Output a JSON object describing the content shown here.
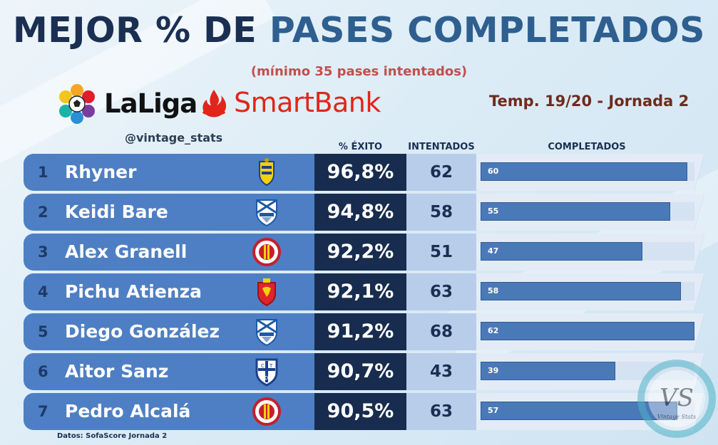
{
  "title": {
    "part1": "MEJOR % DE ",
    "part2": "PASES COMPLETADOS"
  },
  "subtitle": "(mínimo 35 pases intentados)",
  "brand": {
    "laliga": "LaLiga",
    "smartbank": "SmartBank"
  },
  "season": "Temp. 19/20 - Jornada 2",
  "handle": "@vintage_stats",
  "columns": {
    "pct": "% ÉXITO",
    "attempted": "INTENTADOS",
    "completed": "COMPLETADOS"
  },
  "source": "Datos: SofaScore Jornada 2",
  "watermark": {
    "text": "Vintage Stats"
  },
  "colors": {
    "row": "#4e7fc4",
    "pct_bg": "#172c4e",
    "att_bg": "#b7cdea",
    "bar": "#4a79b8",
    "title_dark": "#1b2f52",
    "title_accent": "#2e5f8f",
    "subtitle": "#c0504d",
    "season": "#6e2b1e"
  },
  "chart_data": {
    "type": "table",
    "title": "MEJOR % DE PASES COMPLETADOS",
    "columns": [
      "rank",
      "player",
      "pct_success",
      "attempted",
      "completed"
    ],
    "bar_max": 62,
    "rows": [
      {
        "rank": "1",
        "player": "Rhyner",
        "crest": "cadiz",
        "pct": "96,8%",
        "attempted": 62,
        "completed": 60
      },
      {
        "rank": "2",
        "player": "Keidi Bare",
        "crest": "malaga",
        "pct": "94,8%",
        "attempted": 58,
        "completed": 55
      },
      {
        "rank": "3",
        "player": "Alex Granell",
        "crest": "girona",
        "pct": "92,2%",
        "attempted": 51,
        "completed": 47
      },
      {
        "rank": "4",
        "player": "Pichu Atienza",
        "crest": "zaragoza",
        "pct": "92,1%",
        "attempted": 63,
        "completed": 58
      },
      {
        "rank": "5",
        "player": "Diego González",
        "crest": "malaga",
        "pct": "91,2%",
        "attempted": 68,
        "completed": 62
      },
      {
        "rank": "6",
        "player": "Aitor Sanz",
        "crest": "tenerife",
        "pct": "90,7%",
        "attempted": 43,
        "completed": 39
      },
      {
        "rank": "7",
        "player": "Pedro Alcalá",
        "crest": "girona",
        "pct": "90,5%",
        "attempted": 63,
        "completed": 57
      }
    ]
  }
}
